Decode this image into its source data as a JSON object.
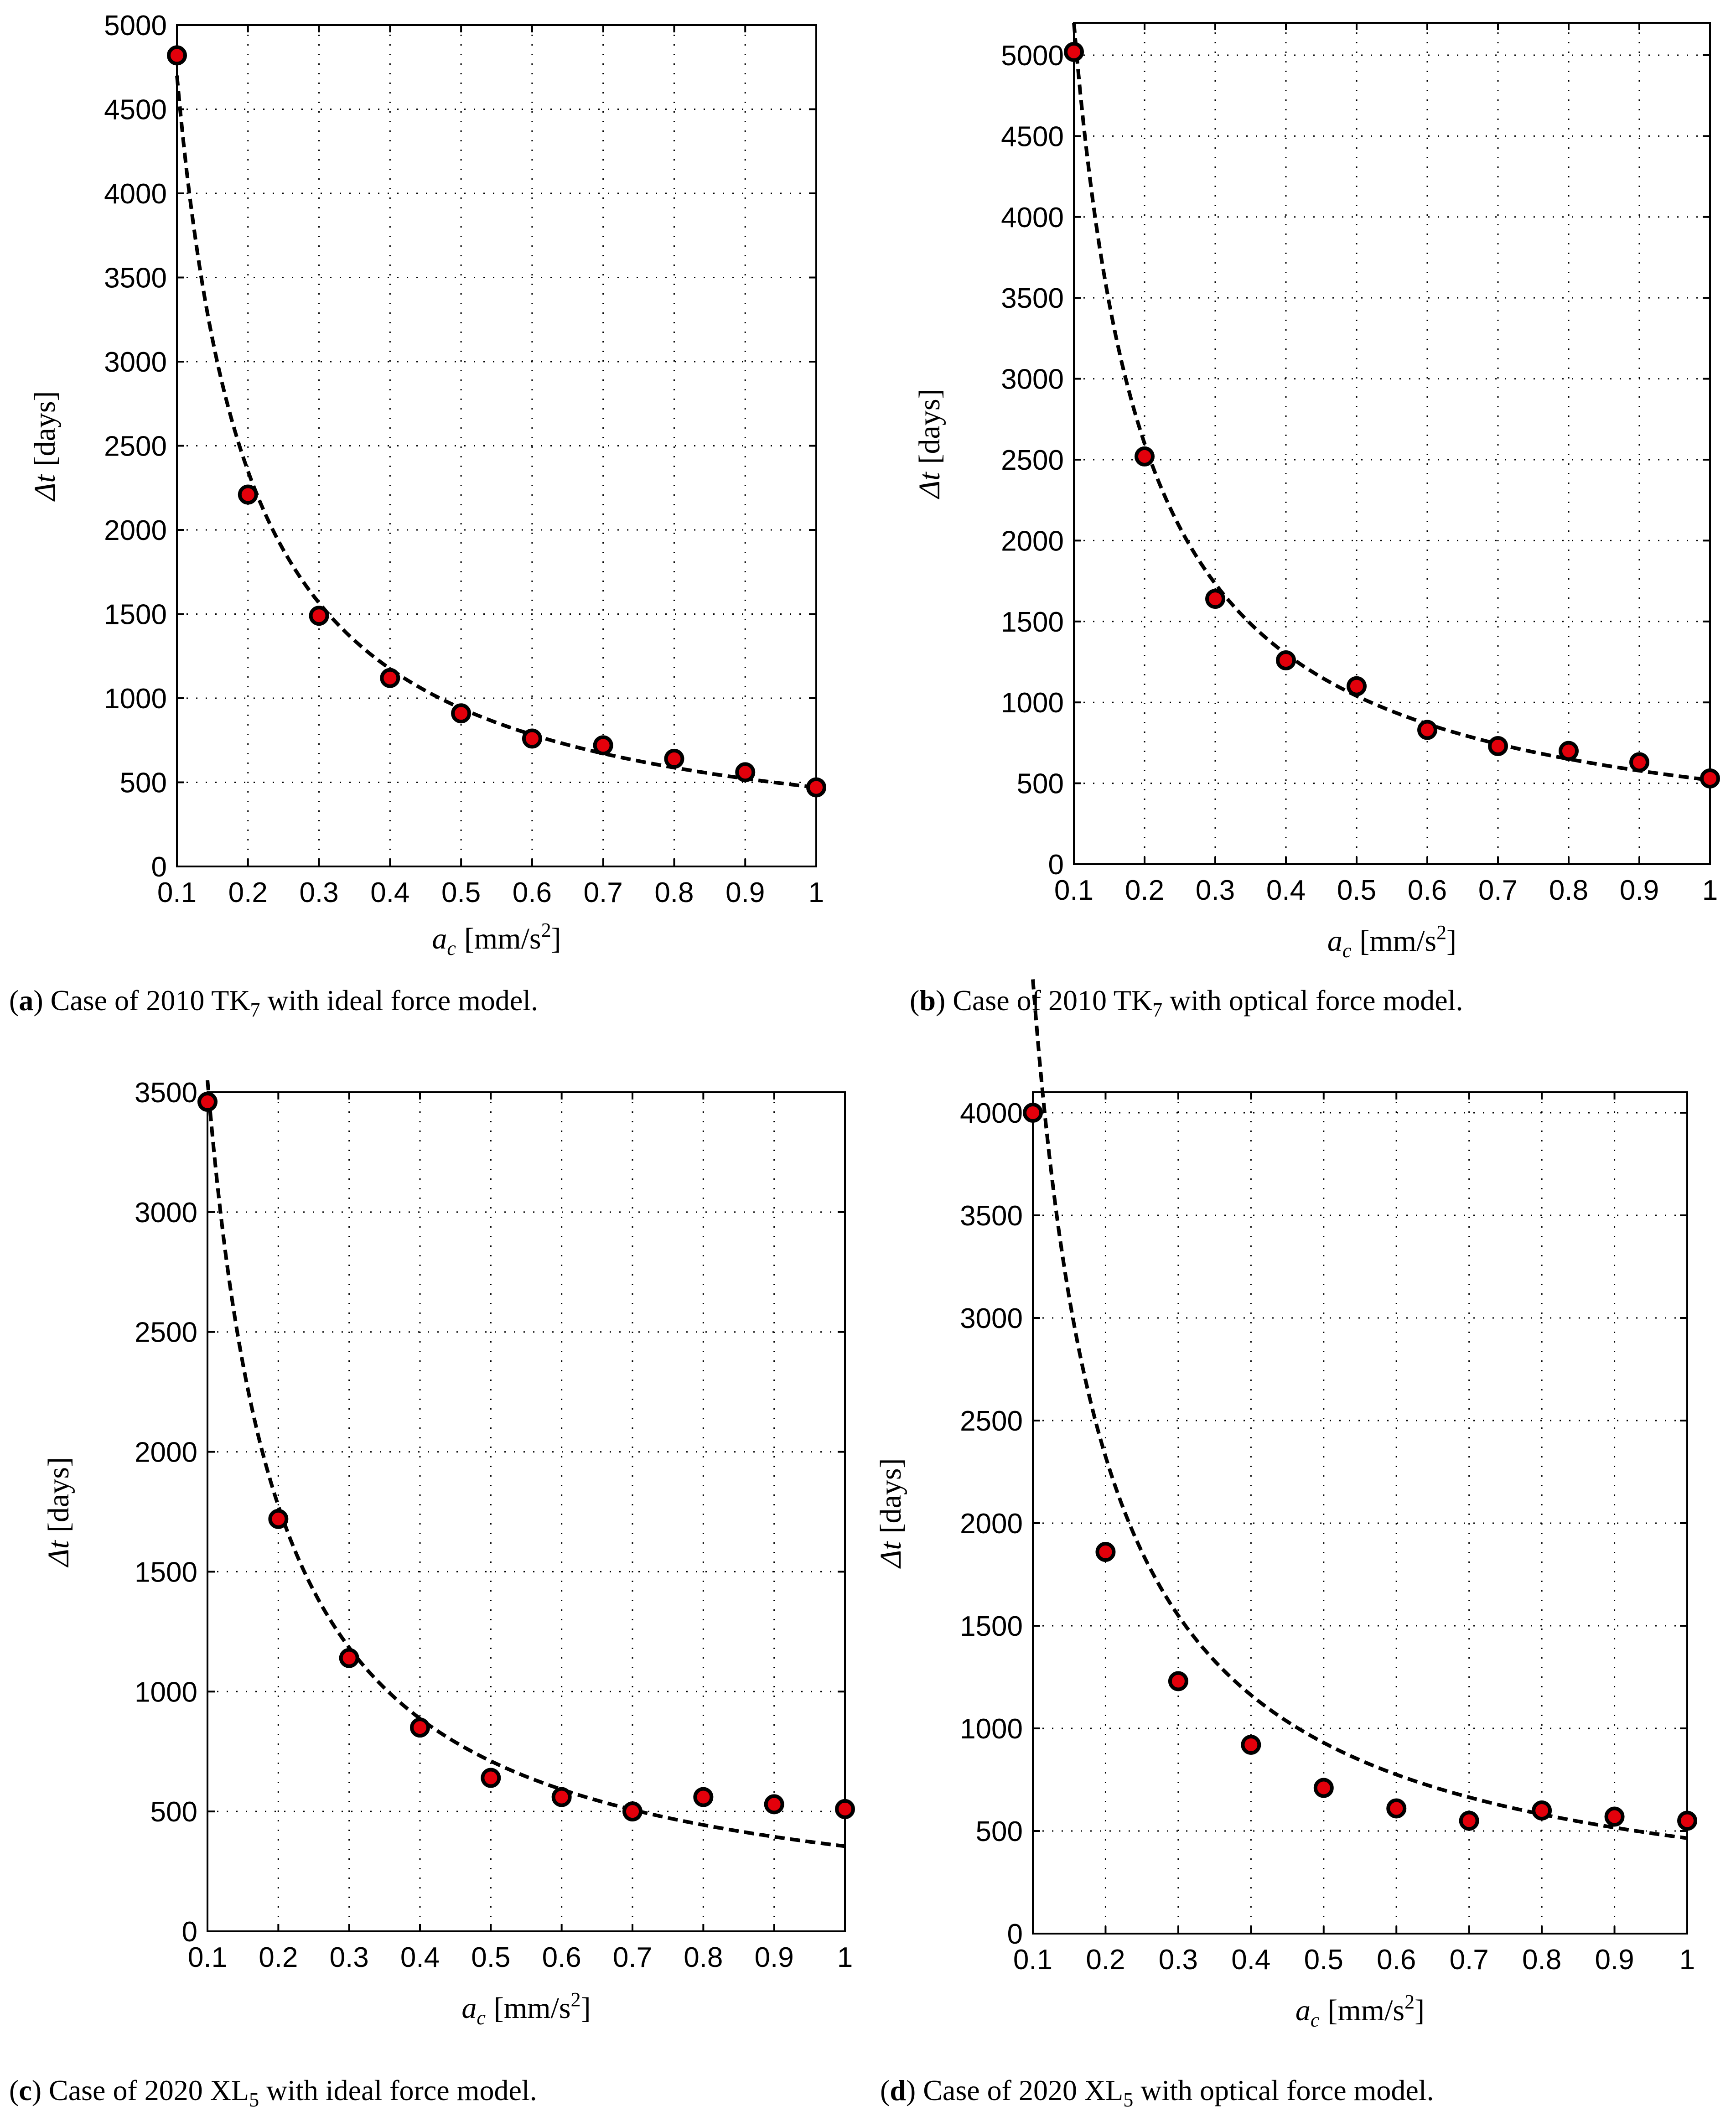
{
  "chart_data": [
    {
      "type": "scatter",
      "panel": "a",
      "caption_label": "a",
      "caption_text": "Case of 2010 TK",
      "caption_sub": "7",
      "caption_rest": " with ideal force model.",
      "xlabel": "a",
      "xlabel_sub": "c",
      "xlabel_units": "[mm/s",
      "xlabel_sup": "2",
      "xlabel_close": "]",
      "ylabel_sym": "Δt",
      "ylabel_units": "[days]",
      "xlim": [
        0.1,
        1
      ],
      "ylim": [
        0,
        5000
      ],
      "xticks": [
        0.1,
        0.2,
        0.3,
        0.4,
        0.5,
        0.6,
        0.7,
        0.8,
        0.9,
        1
      ],
      "xtick_labels": [
        "0.1",
        "0.2",
        "0.3",
        "0.4",
        "0.5",
        "0.6",
        "0.7",
        "0.8",
        "0.9",
        "1"
      ],
      "yticks": [
        0,
        500,
        1000,
        1500,
        2000,
        2500,
        3000,
        3500,
        4000,
        4500,
        5000
      ],
      "ytick_labels": [
        "0",
        "500",
        "1000",
        "1500",
        "2000",
        "2500",
        "3000",
        "3500",
        "4000",
        "4500",
        "5000"
      ],
      "x": [
        0.1,
        0.2,
        0.3,
        0.4,
        0.5,
        0.6,
        0.7,
        0.8,
        0.9,
        1.0
      ],
      "y": [
        4820,
        2210,
        1490,
        1120,
        910,
        760,
        720,
        640,
        560,
        470
      ],
      "fit_numerator": 470
    },
    {
      "type": "scatter",
      "panel": "b",
      "caption_label": "b",
      "caption_text": "Case of 2010 TK",
      "caption_sub": "7",
      "caption_rest": " with optical force model.",
      "xlabel": "a",
      "xlabel_sub": "c",
      "xlabel_units": "[mm/s",
      "xlabel_sup": "2",
      "xlabel_close": "]",
      "ylabel_sym": "Δt",
      "ylabel_units": "[days]",
      "xlim": [
        0.1,
        1
      ],
      "ylim": [
        0,
        5200
      ],
      "xticks": [
        0.1,
        0.2,
        0.3,
        0.4,
        0.5,
        0.6,
        0.7,
        0.8,
        0.9,
        1
      ],
      "xtick_labels": [
        "0.1",
        "0.2",
        "0.3",
        "0.4",
        "0.5",
        "0.6",
        "0.7",
        "0.8",
        "0.9",
        "1"
      ],
      "yticks": [
        0,
        500,
        1000,
        1500,
        2000,
        2500,
        3000,
        3500,
        4000,
        4500,
        5000
      ],
      "ytick_labels": [
        "0",
        "500",
        "1000",
        "1500",
        "2000",
        "2500",
        "3000",
        "3500",
        "4000",
        "4500",
        "5000"
      ],
      "x": [
        0.1,
        0.2,
        0.3,
        0.4,
        0.5,
        0.6,
        0.7,
        0.8,
        0.9,
        1.0
      ],
      "y": [
        5020,
        2520,
        1640,
        1260,
        1100,
        830,
        730,
        700,
        630,
        530
      ],
      "fit_numerator": 520
    },
    {
      "type": "scatter",
      "panel": "c",
      "caption_label": "c",
      "caption_text": "Case of 2020 XL",
      "caption_sub": "5",
      "caption_rest": " with ideal force model.",
      "xlabel": "a",
      "xlabel_sub": "c",
      "xlabel_units": "[mm/s",
      "xlabel_sup": "2",
      "xlabel_close": "]",
      "ylabel_sym": "Δt",
      "ylabel_units": "[days]",
      "xlim": [
        0.1,
        1
      ],
      "ylim": [
        0,
        3500
      ],
      "xticks": [
        0.1,
        0.2,
        0.3,
        0.4,
        0.5,
        0.6,
        0.7,
        0.8,
        0.9,
        1
      ],
      "xtick_labels": [
        "0.1",
        "0.2",
        "0.3",
        "0.4",
        "0.5",
        "0.6",
        "0.7",
        "0.8",
        "0.9",
        "1"
      ],
      "yticks": [
        0,
        500,
        1000,
        1500,
        2000,
        2500,
        3000,
        3500
      ],
      "ytick_labels": [
        "0",
        "500",
        "1000",
        "1500",
        "2000",
        "2500",
        "3000",
        "3500"
      ],
      "x": [
        0.1,
        0.2,
        0.3,
        0.4,
        0.5,
        0.6,
        0.7,
        0.8,
        0.9,
        1.0
      ],
      "y": [
        3460,
        1720,
        1140,
        850,
        640,
        560,
        500,
        560,
        530,
        510
      ],
      "fit_numerator": 355
    },
    {
      "type": "scatter",
      "panel": "d",
      "caption_label": "d",
      "caption_text": "Case of 2020 XL",
      "caption_sub": "5",
      "caption_rest": " with optical force model.",
      "xlabel": "a",
      "xlabel_sub": "c",
      "xlabel_units": "[mm/s",
      "xlabel_sup": "2",
      "xlabel_close": "]",
      "ylabel_sym": "Δt",
      "ylabel_units": "[days]",
      "xlim": [
        0.1,
        1
      ],
      "ylim": [
        0,
        4100
      ],
      "xticks": [
        0.1,
        0.2,
        0.3,
        0.4,
        0.5,
        0.6,
        0.7,
        0.8,
        0.9,
        1
      ],
      "xtick_labels": [
        "0.1",
        "0.2",
        "0.3",
        "0.4",
        "0.5",
        "0.6",
        "0.7",
        "0.8",
        "0.9",
        "1"
      ],
      "yticks": [
        0,
        500,
        1000,
        1500,
        2000,
        2500,
        3000,
        3500,
        4000
      ],
      "ytick_labels": [
        "0",
        "500",
        "1000",
        "1500",
        "2000",
        "2500",
        "3000",
        "3500",
        "4000"
      ],
      "x": [
        0.1,
        0.2,
        0.3,
        0.4,
        0.5,
        0.6,
        0.7,
        0.8,
        0.9,
        1.0
      ],
      "y": [
        4000,
        1860,
        1230,
        920,
        710,
        610,
        550,
        600,
        570,
        550
      ],
      "fit_numerator": 465
    }
  ],
  "colors": {
    "marker_fill": "#e3000b",
    "marker_edge": "#000000",
    "curve": "#000000"
  }
}
